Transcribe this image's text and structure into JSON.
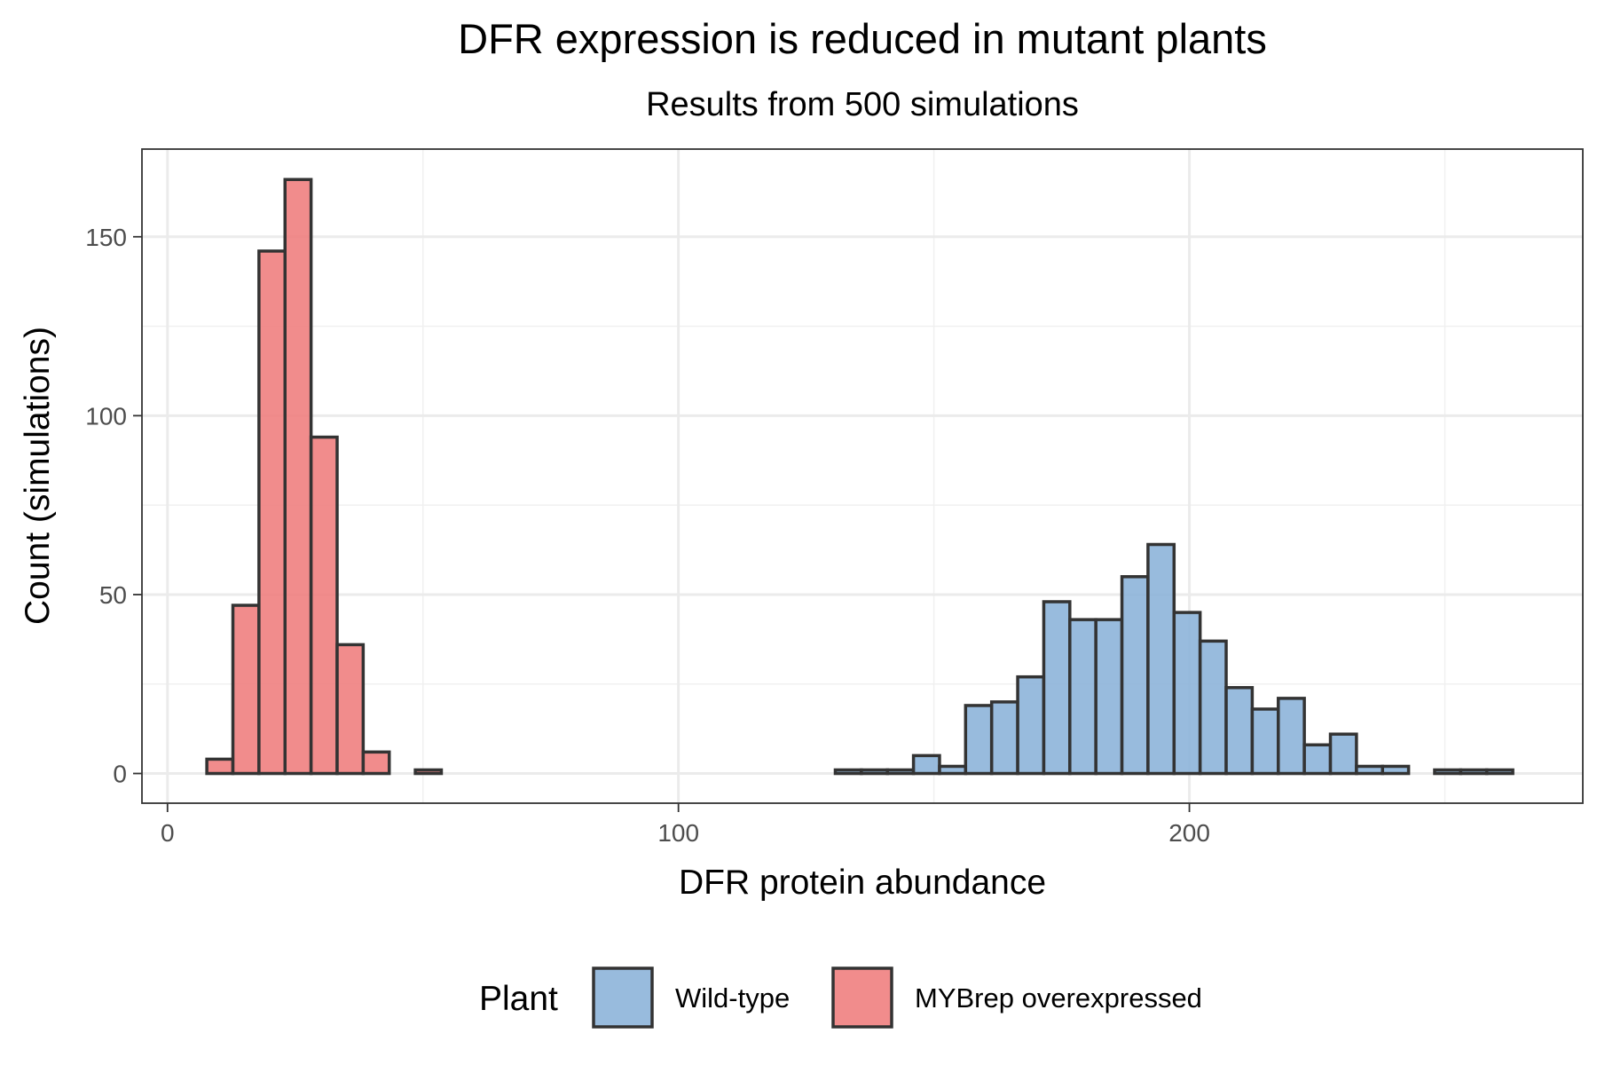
{
  "chart_data": {
    "type": "bar",
    "title": "DFR expression is reduced in mutant plants",
    "subtitle": "Results from 500 simulations",
    "xlabel": "DFR protein abundance",
    "ylabel": "Count (simulations)",
    "xlim": [
      -5,
      277
    ],
    "ylim": [
      -8.3,
      174.5
    ],
    "xticks": [
      0,
      100,
      200
    ],
    "xticks_minor": [
      50,
      150,
      250
    ],
    "yticks": [
      0,
      50,
      100,
      150
    ],
    "yticks_minor": [
      25,
      75,
      125
    ],
    "grid": true,
    "bin_width": 5.1,
    "legend": {
      "title": "Plant",
      "position": "bottom",
      "entries": [
        {
          "label": "Wild-type",
          "color": "#8db4d9"
        },
        {
          "label": "MYBrep overexpressed",
          "color": "#ef8080"
        }
      ]
    },
    "series": [
      {
        "name": "Wild-type",
        "color": "#8db4d9",
        "bins": [
          {
            "x0": 130.7,
            "x1": 135.8,
            "count": 1
          },
          {
            "x0": 135.8,
            "x1": 140.9,
            "count": 1
          },
          {
            "x0": 140.9,
            "x1": 146.0,
            "count": 1
          },
          {
            "x0": 146.0,
            "x1": 151.1,
            "count": 5
          },
          {
            "x0": 151.1,
            "x1": 156.2,
            "count": 2
          },
          {
            "x0": 156.2,
            "x1": 161.3,
            "count": 19
          },
          {
            "x0": 161.3,
            "x1": 166.4,
            "count": 20
          },
          {
            "x0": 166.4,
            "x1": 171.5,
            "count": 27
          },
          {
            "x0": 171.5,
            "x1": 176.6,
            "count": 48
          },
          {
            "x0": 176.6,
            "x1": 181.7,
            "count": 43
          },
          {
            "x0": 181.7,
            "x1": 186.8,
            "count": 43
          },
          {
            "x0": 186.8,
            "x1": 191.9,
            "count": 55
          },
          {
            "x0": 191.9,
            "x1": 197.0,
            "count": 64
          },
          {
            "x0": 197.0,
            "x1": 202.1,
            "count": 45
          },
          {
            "x0": 202.1,
            "x1": 207.2,
            "count": 37
          },
          {
            "x0": 207.2,
            "x1": 212.3,
            "count": 24
          },
          {
            "x0": 212.3,
            "x1": 217.4,
            "count": 18
          },
          {
            "x0": 217.4,
            "x1": 222.5,
            "count": 21
          },
          {
            "x0": 222.5,
            "x1": 227.6,
            "count": 8
          },
          {
            "x0": 227.6,
            "x1": 232.7,
            "count": 11
          },
          {
            "x0": 232.7,
            "x1": 237.8,
            "count": 2
          },
          {
            "x0": 237.8,
            "x1": 242.9,
            "count": 2
          },
          {
            "x0": 242.9,
            "x1": 248.0,
            "count": 0
          },
          {
            "x0": 248.0,
            "x1": 253.1,
            "count": 1
          },
          {
            "x0": 253.1,
            "x1": 258.2,
            "count": 1
          },
          {
            "x0": 258.2,
            "x1": 263.3,
            "count": 1
          }
        ]
      },
      {
        "name": "MYBrep overexpressed",
        "color": "#ef8080",
        "bins": [
          {
            "x0": 7.7,
            "x1": 12.8,
            "count": 4
          },
          {
            "x0": 12.8,
            "x1": 17.9,
            "count": 47
          },
          {
            "x0": 17.9,
            "x1": 23.0,
            "count": 146
          },
          {
            "x0": 23.0,
            "x1": 28.1,
            "count": 166
          },
          {
            "x0": 28.1,
            "x1": 33.2,
            "count": 94
          },
          {
            "x0": 33.2,
            "x1": 38.3,
            "count": 36
          },
          {
            "x0": 38.3,
            "x1": 43.4,
            "count": 6
          },
          {
            "x0": 43.4,
            "x1": 48.5,
            "count": 0
          },
          {
            "x0": 48.5,
            "x1": 53.6,
            "count": 1
          },
          {
            "x0": 53.6,
            "x1": 58.7,
            "count": 0
          },
          {
            "x0": 58.7,
            "x1": 63.8,
            "count": 0
          },
          {
            "x0": 63.8,
            "x1": 68.9,
            "count": 0
          },
          {
            "x0": 68.9,
            "x1": 74.0,
            "count": 0
          },
          {
            "x0": 74.0,
            "x1": 79.1,
            "count": 0
          },
          {
            "x0": 79.1,
            "x1": 84.2,
            "count": 0
          },
          {
            "x0": 84.2,
            "x1": 89.3,
            "count": 0
          },
          {
            "x0": 89.3,
            "x1": 94.4,
            "count": 0
          },
          {
            "x0": 94.4,
            "x1": 99.5,
            "count": 0
          },
          {
            "x0": 99.5,
            "x1": 104.6,
            "count": 0
          },
          {
            "x0": 104.6,
            "x1": 109.7,
            "count": 0
          },
          {
            "x0": 109.7,
            "x1": 114.8,
            "count": 0
          },
          {
            "x0": 114.8,
            "x1": 119.9,
            "count": 0
          },
          {
            "x0": 119.9,
            "x1": 125.0,
            "count": 0
          },
          {
            "x0": 125.0,
            "x1": 130.1,
            "count": 0
          }
        ]
      }
    ]
  }
}
